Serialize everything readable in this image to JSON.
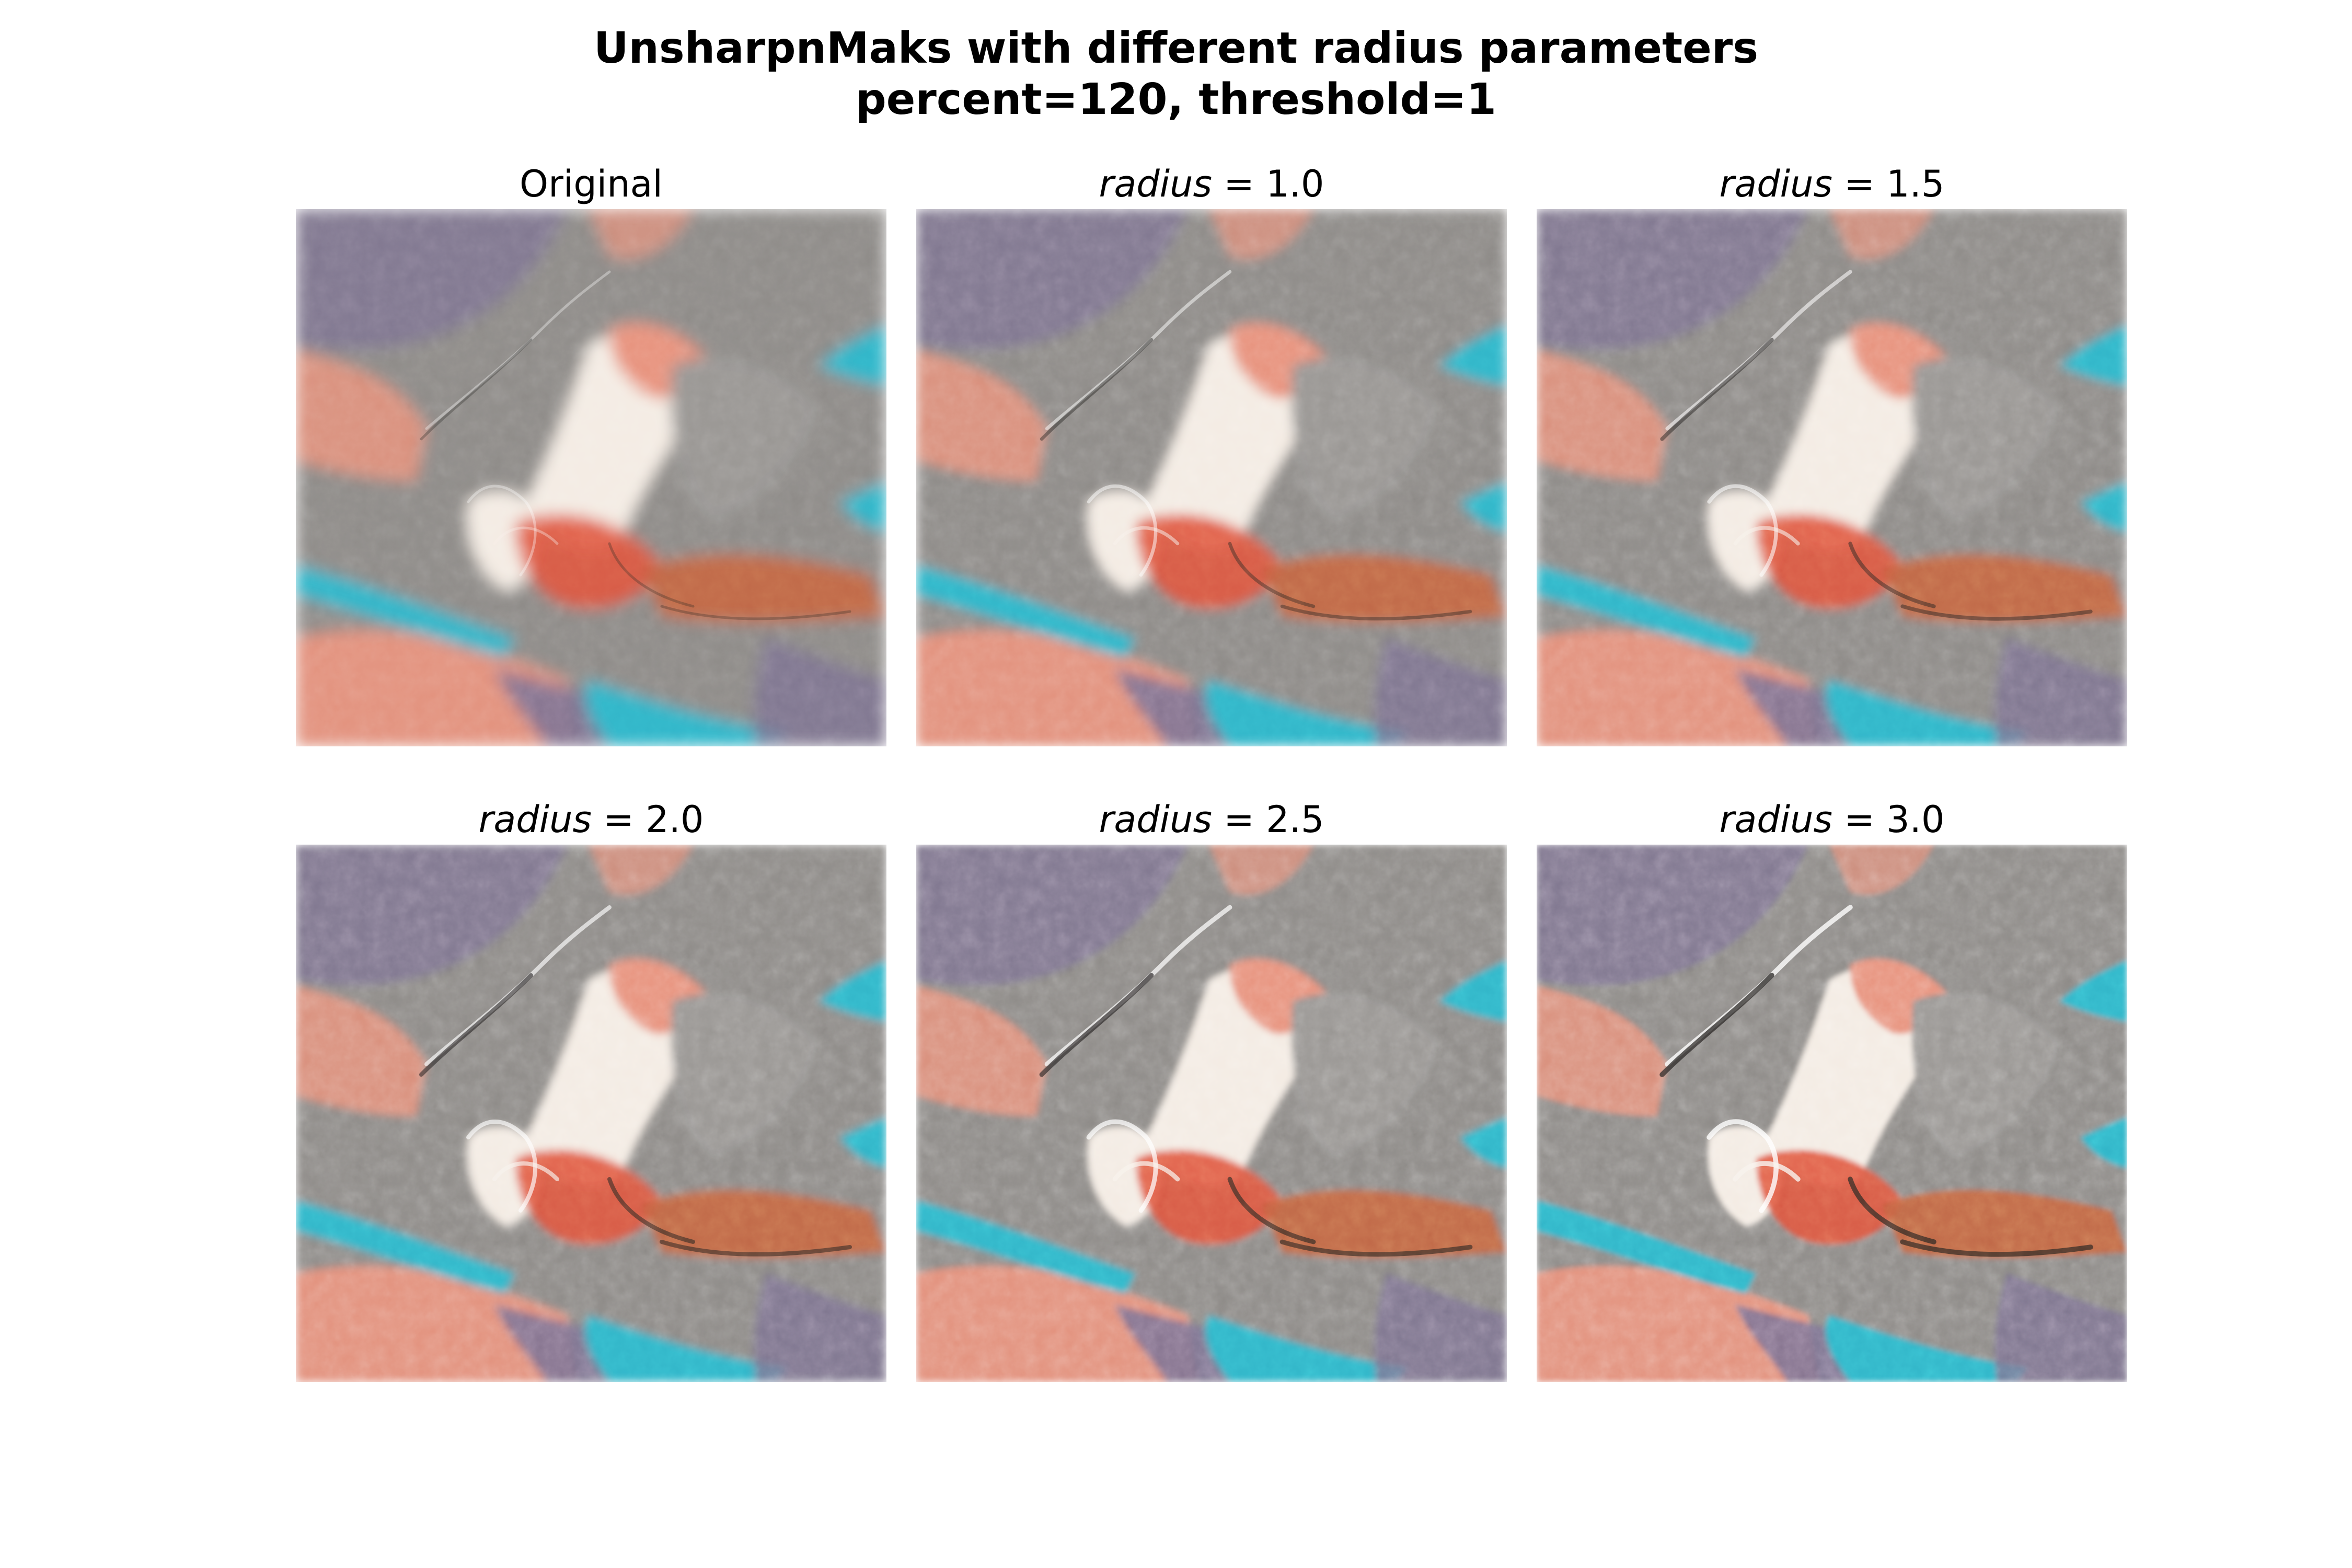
{
  "figure": {
    "title_line1": "UnsharpnMaks with different radius parameters",
    "title_line2": "percent=120, threshold=1"
  },
  "panels": [
    {
      "label": "Original",
      "var": "",
      "value": "",
      "sharpen": 0
    },
    {
      "label": "",
      "var": "radius",
      "value": " = 1.0",
      "sharpen": 1.0
    },
    {
      "label": "",
      "var": "radius",
      "value": " = 1.5",
      "sharpen": 1.5
    },
    {
      "label": "",
      "var": "radius",
      "value": " = 2.0",
      "sharpen": 2.0
    },
    {
      "label": "",
      "var": "radius",
      "value": " = 2.5",
      "sharpen": 2.5
    },
    {
      "label": "",
      "var": "radius",
      "value": " = 3.0",
      "sharpen": 3.0
    }
  ],
  "colors": {
    "terrain_gray": "#8f8c89",
    "highland_purple": "#7d7394",
    "lowland_salmon": "#e8937e",
    "peak_red": "#e0573f",
    "summit_white": "#f4ece4",
    "river_cyan": "#33b6c9"
  }
}
